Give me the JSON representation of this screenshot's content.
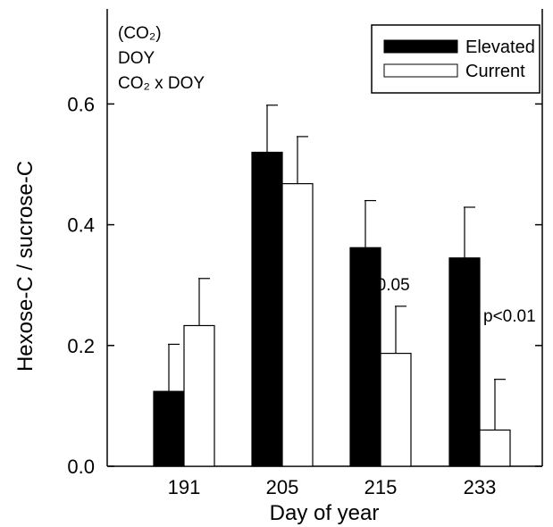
{
  "chart_data": {
    "type": "bar",
    "title": "",
    "xlabel": "Day of year",
    "ylabel": "Hexose-C / sucrose-C",
    "ylim": [
      0,
      0.75
    ],
    "yticks": [
      0.0,
      0.2,
      0.4,
      0.6
    ],
    "ytick_labels": [
      "0.0",
      "0.2",
      "0.4",
      "0.6"
    ],
    "categories": [
      "191",
      "205",
      "215",
      "233"
    ],
    "series": [
      {
        "name": "Elevated",
        "color": "#000000",
        "values": [
          0.124,
          0.52,
          0.362,
          0.345
        ],
        "errors": [
          0.078,
          0.078,
          0.078,
          0.084
        ]
      },
      {
        "name": "Current",
        "color": "#ffffff",
        "values": [
          0.233,
          0.468,
          0.187,
          0.06
        ],
        "errors": [
          0.078,
          0.078,
          0.078,
          0.084
        ]
      }
    ],
    "legend": {
      "placement": "top-right",
      "entries": [
        "Elevated",
        "Current"
      ]
    },
    "stats_block": {
      "line1": "(CO₂)",
      "line2": "DOY",
      "line3": "CO₂ x DOY"
    },
    "annotations": [
      {
        "text": "p<0.05",
        "category": "215"
      },
      {
        "text": "p<0.01",
        "category": "233"
      }
    ],
    "grid": false
  }
}
